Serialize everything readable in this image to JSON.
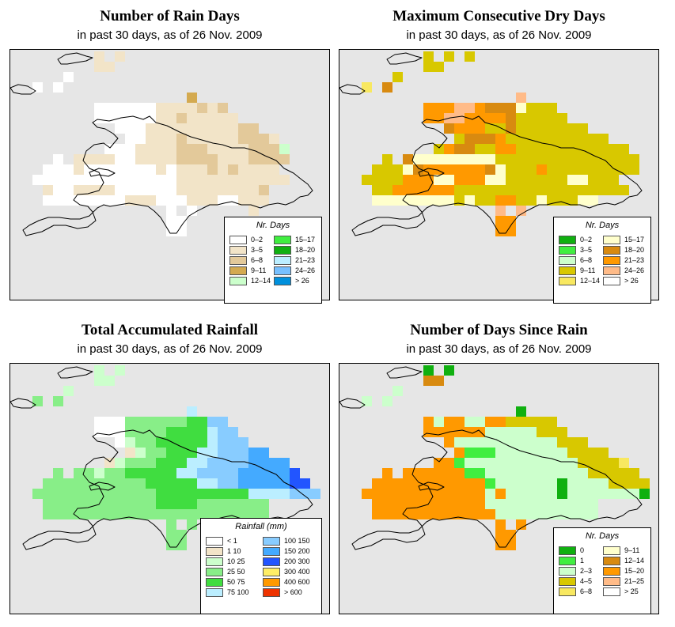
{
  "panels": [
    {
      "title": "Number of Rain Days",
      "subtitle": "in past 30 days, as of  26 Nov. 2009",
      "legend_title": "Nr. Days",
      "legend": [
        {
          "label": "0–2",
          "color": "#ffffff"
        },
        {
          "label": "3–5",
          "color": "#f2e4c8"
        },
        {
          "label": "6–8",
          "color": "#e3c99a"
        },
        {
          "label": "9–11",
          "color": "#d4aa50"
        },
        {
          "label": "12–14",
          "color": "#ccffcc"
        },
        {
          "label": "15–17",
          "color": "#40ee40"
        },
        {
          "label": "18–20",
          "color": "#10b010"
        },
        {
          "label": "21–23",
          "color": "#bbeeff"
        },
        {
          "label": "24–26",
          "color": "#77c0ff"
        },
        {
          "label": "> 26",
          "color": "#0090dd"
        }
      ]
    },
    {
      "title": "Maximum Consecutive Dry Days",
      "subtitle": "in past 30 days, as of  26 Nov. 2009",
      "legend_title": "Nr. Days",
      "legend": [
        {
          "label": "0–2",
          "color": "#10b010"
        },
        {
          "label": "3–5",
          "color": "#40ee40"
        },
        {
          "label": "6–8",
          "color": "#ccffcc"
        },
        {
          "label": "9–11",
          "color": "#d8c800"
        },
        {
          "label": "12–14",
          "color": "#f8e860"
        },
        {
          "label": "15–17",
          "color": "#ffffcc"
        },
        {
          "label": "18–20",
          "color": "#d88a10"
        },
        {
          "label": "21–23",
          "color": "#ff9900"
        },
        {
          "label": "24–26",
          "color": "#ffbb88"
        },
        {
          "label": "> 26",
          "color": "#ffffff"
        }
      ]
    },
    {
      "title": "Total Accumulated Rainfall",
      "subtitle": "in past 30 days, as of  26 Nov. 2009",
      "legend_title": "Rainfall (mm)",
      "legend": [
        {
          "label": "< 1",
          "color": "#ffffff"
        },
        {
          "label": "1    10",
          "color": "#f2e4c8"
        },
        {
          "label": "10    25",
          "color": "#ccffcc"
        },
        {
          "label": "25    50",
          "color": "#88ee88"
        },
        {
          "label": "50    75",
          "color": "#40dd40"
        },
        {
          "label": "75    100",
          "color": "#bbeeff"
        },
        {
          "label": "100    150",
          "color": "#88ccff"
        },
        {
          "label": "150    200",
          "color": "#44aaff"
        },
        {
          "label": "200    300",
          "color": "#2255ff"
        },
        {
          "label": "300    400",
          "color": "#ffee66"
        },
        {
          "label": "400    600",
          "color": "#ff9900"
        },
        {
          "label": "> 600",
          "color": "#ee3300"
        }
      ]
    },
    {
      "title": "Number of Days Since Rain",
      "subtitle": "in past 30 days, as of  26 Nov. 2009",
      "legend_title": "Nr. Days",
      "legend": [
        {
          "label": "0",
          "color": "#10b010"
        },
        {
          "label": "1",
          "color": "#40ee40"
        },
        {
          "label": "2–3",
          "color": "#ccffcc"
        },
        {
          "label": "4–5",
          "color": "#d8c800"
        },
        {
          "label": "6–8",
          "color": "#f8e860"
        },
        {
          "label": "9–11",
          "color": "#ffffcc"
        },
        {
          "label": "12–14",
          "color": "#d88a10"
        },
        {
          "label": "15–20",
          "color": "#ff9900"
        },
        {
          "label": "21–25",
          "color": "#ffbb88"
        },
        {
          "label": "> 25",
          "color": "#ffffff"
        }
      ]
    }
  ],
  "map_grids": [
    [
      "........1.1....................",
      "........11.....................",
      ".....0.........................",
      "..0.0..........................",
      ".................3.............",
      "........0000001111212..........",
      "........00000011211111.........",
      "..........00011111111122.......",
      "...........001112111112221.....",
      ".........000111122211112224....",
      "....0.111100111122221112222....",
      "...00010000000101112121111.....",
      "..0000000000000011111111111....",
      "...1001111000000111111112.....",
      "...0000000011100011100111......",
      "...............0.0.....1.......",
      "...............00..............",
      "...............00.............."
    ],
    [
      "........3.3.3..................",
      "........33.....................",
      ".....3.........................",
      "..4.6..........................",
      ".................8.............",
      "........7778876665333..........",
      "........77887777633333.........",
      "..........67773363333333.......",
      "...........366673333333333.....",
      ".........3766337733333333333...",
      "....3.65555555533333333333333..",
      "...33356777777653337333333333..",
      "..3333777557775533333355333....",
      "...3377777733333333333333333...",
      "...5555555535337733533355......",
      "...............8.8.............",
      "...............77..............",
      "...............77.............."
    ],
    [
      "........2.2....................",
      "........22.....................",
      ".....2.........................",
      "..3.3..........................",
      ".................5.............",
      "........0003333334466..........",
      "........00033334444566.........",
      "..........0233444445666........",
      "...........12334445566677......",
      ".........123334445566667777....",
      "....3.3323344444556666777778...",
      "...33333333334444455667777788..",
      "..3333333333334444444445555666.",
      "...3333333333344443333333......",
      "...3333333333333333333333......",
      "...............3.3.............",
      "...............33..............",
      "...............33.............."
    ],
    [
      "........0.0....................",
      "........66.....................",
      ".....2.........................",
      "..2.2..........................",
      ".................0.............",
      "........7277227733333..........",
      "........77777722222333.........",
      "..........72222222222333.......",
      "...........711122222223333.....",
      ".........7712222222222233334...",
      "....7.77777711222222222233333..",
      "...777777777771222222022223333.",
      "..7777777777772722222022222220.",
      "...7777777777722222222222......",
      "...7777777777772222222222......",
      "...............7.7.............",
      "...............77..............",
      "...............77.............."
    ]
  ]
}
